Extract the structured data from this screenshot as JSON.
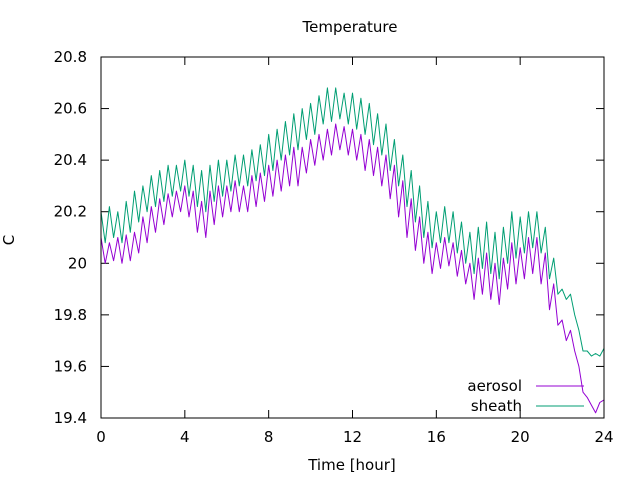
{
  "chart_data": {
    "type": "line",
    "title": "Temperature",
    "xlabel": "Time [hour]",
    "ylabel": "C",
    "xlim": [
      0,
      24
    ],
    "ylim": [
      19.4,
      20.8
    ],
    "xticks": [
      0,
      4,
      8,
      12,
      16,
      20,
      24
    ],
    "yticks": [
      19.4,
      19.6,
      19.8,
      20,
      20.2,
      20.4,
      20.6,
      20.8
    ],
    "ytick_labels": [
      "19.4",
      "19.6",
      "19.8",
      "20",
      "20.2",
      "20.4",
      "20.6",
      "20.8"
    ],
    "legend_position": "bottom-right",
    "grid": false,
    "series": [
      {
        "name": "aerosol",
        "color": "#9400d3",
        "x": [
          0,
          0.2,
          0.4,
          0.6,
          0.8,
          1.0,
          1.2,
          1.4,
          1.6,
          1.8,
          2.0,
          2.2,
          2.4,
          2.6,
          2.8,
          3.0,
          3.2,
          3.4,
          3.6,
          3.8,
          4.0,
          4.2,
          4.4,
          4.6,
          4.8,
          5.0,
          5.2,
          5.4,
          5.6,
          5.8,
          6.0,
          6.2,
          6.4,
          6.6,
          6.8,
          7.0,
          7.2,
          7.4,
          7.6,
          7.8,
          8.0,
          8.2,
          8.4,
          8.6,
          8.8,
          9.0,
          9.2,
          9.4,
          9.6,
          9.8,
          10.0,
          10.2,
          10.4,
          10.6,
          10.8,
          11.0,
          11.2,
          11.4,
          11.6,
          11.8,
          12.0,
          12.2,
          12.4,
          12.6,
          12.8,
          13.0,
          13.2,
          13.4,
          13.6,
          13.8,
          14.0,
          14.2,
          14.4,
          14.6,
          14.8,
          15.0,
          15.2,
          15.4,
          15.6,
          15.8,
          16.0,
          16.2,
          16.4,
          16.6,
          16.8,
          17.0,
          17.2,
          17.4,
          17.6,
          17.8,
          18.0,
          18.2,
          18.4,
          18.6,
          18.8,
          19.0,
          19.2,
          19.4,
          19.6,
          19.8,
          20.0,
          20.2,
          20.4,
          20.6,
          20.8,
          21.0,
          21.2,
          21.4,
          21.6,
          21.8,
          22.0,
          22.2,
          22.4,
          22.6,
          22.8,
          23.0,
          23.2,
          23.4,
          23.6,
          23.8,
          24.0
        ],
        "y": [
          20.1,
          20.0,
          20.08,
          20.01,
          20.1,
          20.0,
          20.11,
          20.01,
          20.12,
          20.04,
          20.18,
          20.08,
          20.22,
          20.12,
          20.25,
          20.15,
          20.27,
          20.18,
          20.28,
          20.2,
          20.3,
          20.18,
          20.28,
          20.12,
          20.24,
          20.1,
          20.28,
          20.15,
          20.3,
          20.18,
          20.3,
          20.2,
          20.32,
          20.2,
          20.3,
          20.2,
          20.34,
          20.22,
          20.35,
          20.24,
          20.38,
          20.26,
          20.4,
          20.28,
          20.42,
          20.3,
          20.45,
          20.3,
          20.45,
          20.35,
          20.48,
          20.38,
          20.5,
          20.4,
          20.52,
          20.42,
          20.54,
          20.44,
          20.53,
          20.42,
          20.52,
          20.4,
          20.5,
          20.36,
          20.48,
          20.34,
          20.45,
          20.3,
          20.42,
          20.25,
          20.38,
          20.18,
          20.32,
          20.1,
          20.25,
          20.05,
          20.18,
          20.0,
          20.12,
          19.96,
          20.08,
          19.98,
          20.1,
          19.99,
          20.08,
          19.95,
          20.05,
          19.92,
          20.0,
          19.86,
          20.02,
          19.88,
          20.04,
          19.86,
          20.0,
          19.84,
          20.02,
          19.9,
          20.08,
          19.92,
          20.06,
          19.94,
          20.1,
          19.96,
          20.1,
          19.92,
          20.04,
          19.82,
          19.92,
          19.76,
          19.78,
          19.7,
          19.74,
          19.66,
          19.6,
          19.5,
          19.48,
          19.45,
          19.42,
          19.46,
          19.47
        ],
        "legend_label": "aerosol"
      },
      {
        "name": "sheath",
        "color": "#009e73",
        "x": [
          0,
          0.2,
          0.4,
          0.6,
          0.8,
          1.0,
          1.2,
          1.4,
          1.6,
          1.8,
          2.0,
          2.2,
          2.4,
          2.6,
          2.8,
          3.0,
          3.2,
          3.4,
          3.6,
          3.8,
          4.0,
          4.2,
          4.4,
          4.6,
          4.8,
          5.0,
          5.2,
          5.4,
          5.6,
          5.8,
          6.0,
          6.2,
          6.4,
          6.6,
          6.8,
          7.0,
          7.2,
          7.4,
          7.6,
          7.8,
          8.0,
          8.2,
          8.4,
          8.6,
          8.8,
          9.0,
          9.2,
          9.4,
          9.6,
          9.8,
          10.0,
          10.2,
          10.4,
          10.6,
          10.8,
          11.0,
          11.2,
          11.4,
          11.6,
          11.8,
          12.0,
          12.2,
          12.4,
          12.6,
          12.8,
          13.0,
          13.2,
          13.4,
          13.6,
          13.8,
          14.0,
          14.2,
          14.4,
          14.6,
          14.8,
          15.0,
          15.2,
          15.4,
          15.6,
          15.8,
          16.0,
          16.2,
          16.4,
          16.6,
          16.8,
          17.0,
          17.2,
          17.4,
          17.6,
          17.8,
          18.0,
          18.2,
          18.4,
          18.6,
          18.8,
          19.0,
          19.2,
          19.4,
          19.6,
          19.8,
          20.0,
          20.2,
          20.4,
          20.6,
          20.8,
          21.0,
          21.2,
          21.4,
          21.6,
          21.8,
          22.0,
          22.2,
          22.4,
          22.6,
          22.8,
          23.0,
          23.2,
          23.4,
          23.6,
          23.8,
          24.0
        ],
        "y": [
          20.2,
          20.08,
          20.22,
          20.1,
          20.2,
          20.08,
          20.24,
          20.12,
          20.28,
          20.16,
          20.3,
          20.2,
          20.34,
          20.22,
          20.36,
          20.24,
          20.38,
          20.26,
          20.38,
          20.28,
          20.4,
          20.26,
          20.38,
          20.22,
          20.36,
          20.2,
          20.38,
          20.24,
          20.4,
          20.26,
          20.4,
          20.28,
          20.42,
          20.3,
          20.42,
          20.3,
          20.44,
          20.32,
          20.46,
          20.34,
          20.5,
          20.36,
          20.52,
          20.4,
          20.55,
          20.42,
          20.58,
          20.44,
          20.6,
          20.48,
          20.62,
          20.5,
          20.65,
          20.54,
          20.68,
          20.55,
          20.68,
          20.56,
          20.66,
          20.54,
          20.66,
          20.52,
          20.64,
          20.5,
          20.62,
          20.46,
          20.58,
          20.42,
          20.54,
          20.36,
          20.48,
          20.3,
          20.42,
          20.22,
          20.36,
          20.16,
          20.3,
          20.1,
          20.24,
          20.06,
          20.2,
          20.08,
          20.22,
          20.08,
          20.2,
          20.04,
          20.16,
          20.0,
          20.12,
          19.96,
          20.14,
          19.98,
          20.16,
          19.96,
          20.12,
          19.94,
          20.14,
          20.0,
          20.2,
          20.02,
          20.18,
          20.04,
          20.2,
          20.06,
          20.2,
          20.04,
          20.14,
          19.94,
          20.02,
          19.88,
          19.9,
          19.86,
          19.88,
          19.8,
          19.74,
          19.66,
          19.66,
          19.64,
          19.65,
          19.64,
          19.67
        ],
        "legend_label": "sheath"
      }
    ]
  }
}
